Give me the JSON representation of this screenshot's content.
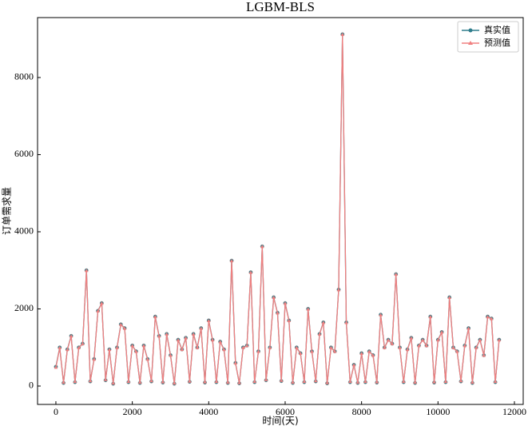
{
  "chart_data": {
    "type": "line",
    "title": "LGBM-BLS",
    "xlabel": "时间(天)",
    "ylabel": "订单需求量",
    "x": [
      0,
      100,
      200,
      300,
      400,
      500,
      600,
      700,
      800,
      900,
      1000,
      1100,
      1200,
      1300,
      1400,
      1500,
      1600,
      1700,
      1800,
      1900,
      2000,
      2100,
      2200,
      2300,
      2400,
      2500,
      2600,
      2700,
      2800,
      2900,
      3000,
      3100,
      3200,
      3300,
      3400,
      3500,
      3600,
      3700,
      3800,
      3900,
      4000,
      4100,
      4200,
      4300,
      4400,
      4500,
      4600,
      4700,
      4800,
      4900,
      5000,
      5100,
      5200,
      5300,
      5400,
      5500,
      5600,
      5700,
      5800,
      5900,
      6000,
      6100,
      6200,
      6300,
      6400,
      6500,
      6600,
      6700,
      6800,
      6900,
      7000,
      7100,
      7200,
      7300,
      7400,
      7500,
      7600,
      7700,
      7800,
      7900,
      8000,
      8100,
      8200,
      8300,
      8400,
      8500,
      8600,
      8700,
      8800,
      8900,
      9000,
      9100,
      9200,
      9300,
      9400,
      9500,
      9600,
      9700,
      9800,
      9900,
      10000,
      10100,
      10200,
      10300,
      10400,
      10500,
      10600,
      10700,
      10800,
      10900,
      11000,
      11100,
      11200,
      11300,
      11400,
      11500,
      11600
    ],
    "series": [
      {
        "name": "真实值",
        "color": "#2e7d8c",
        "marker": "circle",
        "values": [
          500,
          1000,
          80,
          950,
          1300,
          100,
          1000,
          1100,
          3000,
          120,
          700,
          1950,
          2150,
          150,
          950,
          60,
          1000,
          1600,
          1500,
          100,
          1050,
          900,
          80,
          1050,
          700,
          120,
          1800,
          1300,
          90,
          1350,
          800,
          60,
          1200,
          950,
          1250,
          110,
          1350,
          1000,
          1500,
          90,
          1700,
          1200,
          100,
          1150,
          950,
          80,
          3250,
          600,
          70,
          1000,
          1050,
          2950,
          100,
          900,
          3620,
          150,
          1000,
          2300,
          1900,
          130,
          2150,
          1700,
          80,
          1000,
          850,
          100,
          2000,
          900,
          120,
          1350,
          1650,
          70,
          1000,
          900,
          2500,
          9120,
          1650,
          100,
          550,
          80,
          850,
          100,
          900,
          800,
          90,
          1850,
          1000,
          1200,
          1100,
          2900,
          1000,
          100,
          950,
          1250,
          80,
          1050,
          1200,
          1050,
          1800,
          90,
          1200,
          1400,
          100,
          2300,
          1000,
          900,
          120,
          1050,
          1500,
          80,
          1000,
          1200,
          800,
          1800,
          1750,
          100,
          1200
        ]
      },
      {
        "name": "预测值",
        "color": "#f08080",
        "marker": "triangle",
        "values": [
          480,
          990,
          90,
          940,
          1290,
          110,
          990,
          1090,
          2990,
          130,
          690,
          1940,
          2140,
          160,
          940,
          70,
          990,
          1590,
          1490,
          110,
          1040,
          890,
          90,
          1040,
          690,
          130,
          1790,
          1290,
          100,
          1340,
          790,
          70,
          1190,
          940,
          1240,
          120,
          1340,
          990,
          1490,
          100,
          1690,
          1190,
          110,
          1140,
          940,
          90,
          3240,
          590,
          80,
          990,
          1040,
          2940,
          110,
          890,
          3610,
          160,
          990,
          2290,
          1890,
          140,
          2140,
          1690,
          90,
          990,
          840,
          110,
          1990,
          890,
          130,
          1340,
          1640,
          80,
          990,
          890,
          2490,
          9110,
          1640,
          110,
          540,
          90,
          840,
          110,
          890,
          790,
          100,
          1840,
          990,
          1190,
          1090,
          2890,
          990,
          110,
          940,
          1240,
          90,
          1040,
          1190,
          1040,
          1790,
          100,
          1190,
          1390,
          110,
          2290,
          990,
          890,
          130,
          1040,
          1490,
          90,
          990,
          1190,
          790,
          1790,
          1740,
          110,
          1190
        ]
      }
    ],
    "xlim": [
      -480,
      12230
    ],
    "ylim": [
      -477,
      9554
    ],
    "xticks": [
      0,
      2000,
      4000,
      6000,
      8000,
      10000,
      12000
    ],
    "yticks": [
      0,
      2000,
      4000,
      6000,
      8000
    ],
    "legend": "upper right"
  }
}
